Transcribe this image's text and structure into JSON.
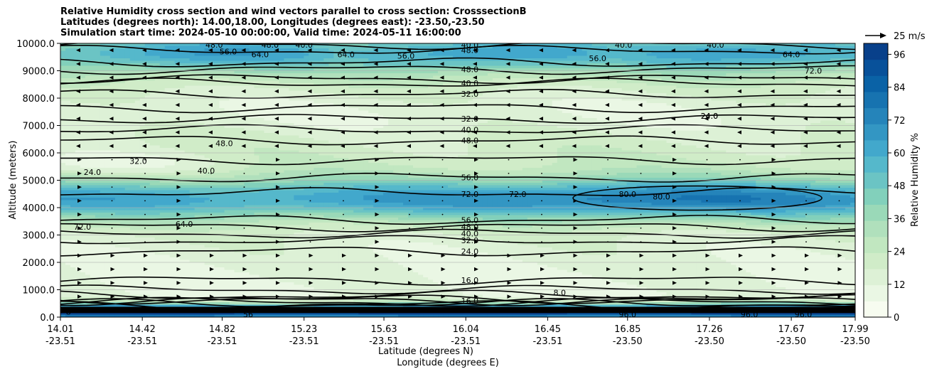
{
  "chart_data": {
    "type": "contourf",
    "title_lines": [
      "Relative Humidity cross section and wind vectors parallel to cross section: CrosssectionB",
      "Latitudes (degrees north): 14.00,18.00, Longitudes (degrees east): -23.50,-23.50",
      "Simulation start time: 2024-05-10 00:00:00, Valid time: 2024-05-11 16:00:00"
    ],
    "xlabel": "Latitude (degrees N)",
    "xlabel2": "Longitude (degrees E)",
    "ylabel": "Altitude (meters)",
    "ylim": [
      0,
      10000
    ],
    "yticks": [
      "0.0",
      "1000.0",
      "2000.0",
      "3000.0",
      "4000.0",
      "5000.0",
      "6000.0",
      "7000.0",
      "8000.0",
      "9000.0",
      "10000.0"
    ],
    "xticks": [
      {
        "lat": "14.01",
        "lon": "-23.51"
      },
      {
        "lat": "14.42",
        "lon": "-23.51"
      },
      {
        "lat": "14.82",
        "lon": "-23.51"
      },
      {
        "lat": "15.23",
        "lon": "-23.51"
      },
      {
        "lat": "15.63",
        "lon": "-23.51"
      },
      {
        "lat": "16.04",
        "lon": "-23.51"
      },
      {
        "lat": "16.45",
        "lon": "-23.51"
      },
      {
        "lat": "16.85",
        "lon": "-23.50"
      },
      {
        "lat": "17.26",
        "lon": "-23.50"
      },
      {
        "lat": "17.67",
        "lon": "-23.50"
      },
      {
        "lat": "17.99",
        "lon": "-23.50"
      }
    ],
    "colorbar": {
      "label": "Relative Humidity %",
      "range": [
        0,
        100
      ],
      "ticks": [
        "0",
        "12",
        "24",
        "36",
        "48",
        "60",
        "72",
        "84",
        "96"
      ],
      "colormap": "GnBu",
      "colors": [
        "#f7fcf0",
        "#eaf7e4",
        "#ddf1d6",
        "#d0ecc8",
        "#c1e7c0",
        "#b0e0bc",
        "#9ad9b8",
        "#82d0bb",
        "#6bc4c4",
        "#55b8cb",
        "#42a8cc",
        "#3396c3",
        "#2584ba",
        "#1773b0",
        "#0a62a6",
        "#08519a",
        "#08408a"
      ]
    },
    "quiver_key": {
      "label": "25 m/s"
    },
    "contour_labels": [
      {
        "value": "8",
        "alt": 200,
        "lat": 14.05
      },
      {
        "value": "48.0",
        "alt": 9950,
        "lat": 14.78
      },
      {
        "value": "56.0",
        "alt": 9700,
        "lat": 14.85
      },
      {
        "value": "48.0",
        "alt": 9950,
        "lat": 15.06
      },
      {
        "value": "64.0",
        "alt": 9600,
        "lat": 15.01
      },
      {
        "value": "40.0",
        "alt": 9950,
        "lat": 15.23
      },
      {
        "value": "64.0",
        "alt": 9600,
        "lat": 15.44
      },
      {
        "value": "56.0",
        "alt": 9550,
        "lat": 15.74
      },
      {
        "value": "40.0",
        "alt": 9950,
        "lat": 16.06
      },
      {
        "value": "48.0",
        "alt": 9750,
        "lat": 16.06
      },
      {
        "value": "56.0",
        "alt": 9450,
        "lat": 16.7
      },
      {
        "value": "40.0",
        "alt": 9950,
        "lat": 16.83
      },
      {
        "value": "40.0",
        "alt": 9950,
        "lat": 17.29
      },
      {
        "value": "48.0",
        "alt": 9050,
        "lat": 16.06
      },
      {
        "value": "40.0",
        "alt": 8550,
        "lat": 16.06
      },
      {
        "value": "32.0",
        "alt": 8150,
        "lat": 16.06
      },
      {
        "value": "24.0",
        "alt": 7350,
        "lat": 17.26
      },
      {
        "value": "32.0",
        "alt": 7250,
        "lat": 16.06
      },
      {
        "value": "40.0",
        "alt": 6850,
        "lat": 16.06
      },
      {
        "value": "48.0",
        "alt": 6450,
        "lat": 16.06
      },
      {
        "value": "48.0",
        "alt": 6350,
        "lat": 14.83
      },
      {
        "value": "32.0",
        "alt": 5700,
        "lat": 14.4
      },
      {
        "value": "24.0",
        "alt": 5300,
        "lat": 14.17
      },
      {
        "value": "40.0",
        "alt": 5350,
        "lat": 14.74
      },
      {
        "value": "56.0",
        "alt": 5100,
        "lat": 16.06
      },
      {
        "value": "72.0",
        "alt": 4500,
        "lat": 16.06
      },
      {
        "value": "72.0",
        "alt": 4500,
        "lat": 16.3
      },
      {
        "value": "80.0",
        "alt": 4500,
        "lat": 16.85
      },
      {
        "value": "80.0",
        "alt": 4400,
        "lat": 17.02
      },
      {
        "value": "72.0",
        "alt": 3300,
        "lat": 14.12
      },
      {
        "value": "64.0",
        "alt": 3400,
        "lat": 14.63
      },
      {
        "value": "56.0",
        "alt": 3550,
        "lat": 16.06
      },
      {
        "value": "48.0",
        "alt": 3300,
        "lat": 16.06
      },
      {
        "value": "40.0",
        "alt": 3050,
        "lat": 16.06
      },
      {
        "value": "32.0",
        "alt": 2800,
        "lat": 16.06
      },
      {
        "value": "24.0",
        "alt": 2400,
        "lat": 16.06
      },
      {
        "value": "16.0",
        "alt": 1350,
        "lat": 16.06
      },
      {
        "value": "8.0",
        "alt": 900,
        "lat": 16.51
      },
      {
        "value": "16.0",
        "alt": 600,
        "lat": 16.06
      },
      {
        "value": "56",
        "alt": 100,
        "lat": 14.95
      },
      {
        "value": "96.0",
        "alt": 100,
        "lat": 16.85
      },
      {
        "value": "96.0",
        "alt": 100,
        "lat": 17.46
      },
      {
        "value": "96.0",
        "alt": 100,
        "lat": 17.73
      },
      {
        "value": "24.0",
        "alt": 7350,
        "lat": 17.26
      },
      {
        "value": "64.0",
        "alt": 9600,
        "lat": 17.67
      },
      {
        "value": "72.0",
        "alt": 9000,
        "lat": 17.78
      }
    ]
  }
}
